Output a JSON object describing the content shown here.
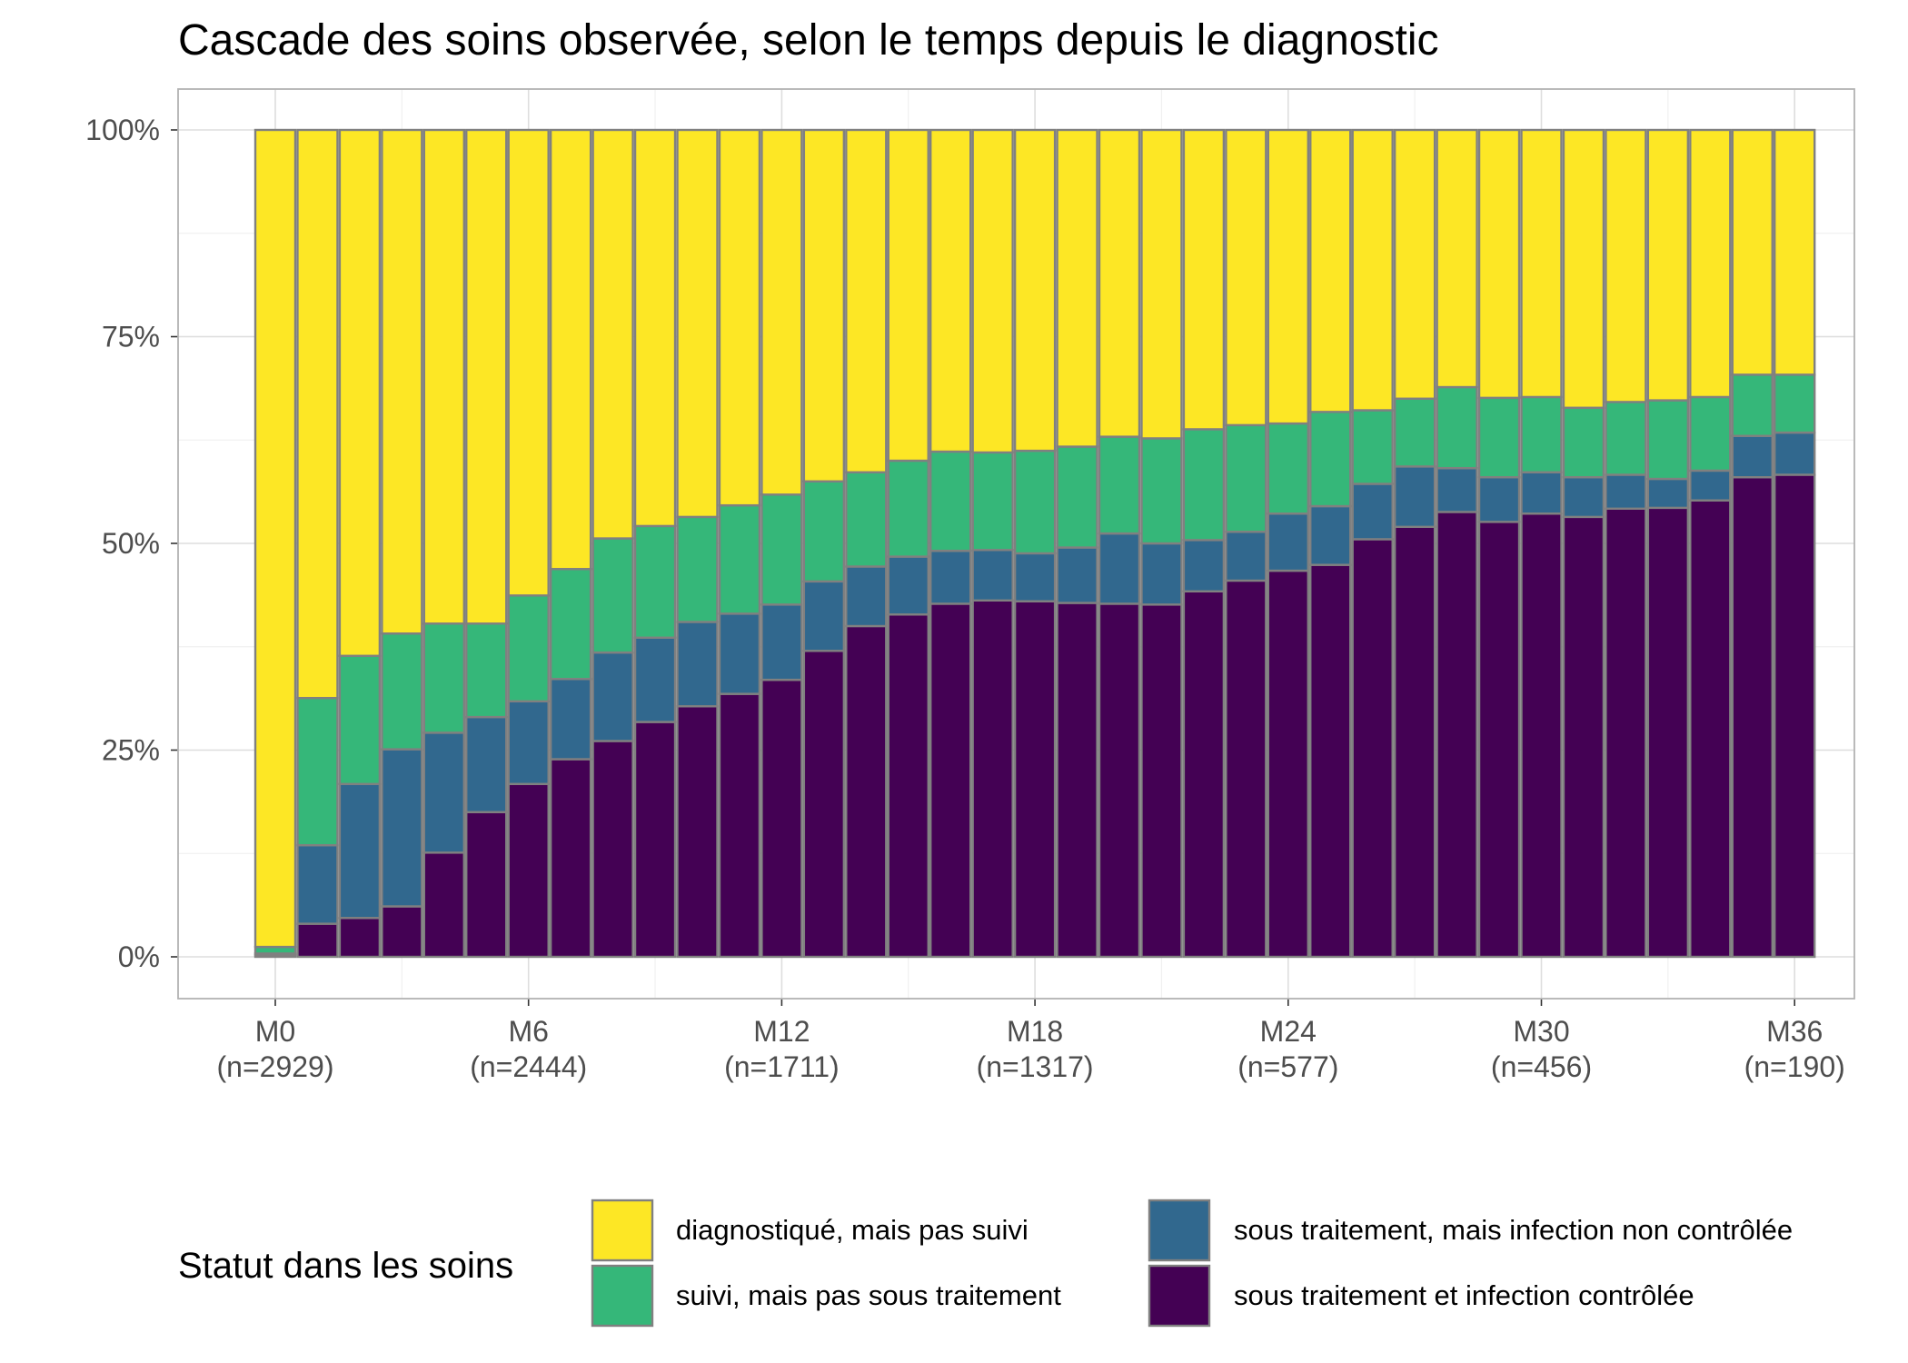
{
  "chart_data": {
    "type": "bar",
    "stacked": true,
    "title": "Cascade des soins observée, selon le temps depuis le diagnostic",
    "xlabel": "",
    "ylabel": "",
    "ylim": [
      0,
      1
    ],
    "y_ticks": [
      "0%",
      "25%",
      "50%",
      "75%",
      "100%"
    ],
    "x_tick_labels": [
      {
        "month": 0,
        "label": "M0",
        "n": "(n=2929)"
      },
      {
        "month": 6,
        "label": "M6",
        "n": "(n=2444)"
      },
      {
        "month": 12,
        "label": "M12",
        "n": "(n=1711)"
      },
      {
        "month": 18,
        "label": "M18",
        "n": "(n=1317)"
      },
      {
        "month": 24,
        "label": "M24",
        "n": "(n=577)"
      },
      {
        "month": 30,
        "label": "M30",
        "n": "(n=456)"
      },
      {
        "month": 36,
        "label": "M36",
        "n": "(n=190)"
      }
    ],
    "months": [
      0,
      1,
      2,
      3,
      4,
      5,
      6,
      7,
      8,
      9,
      10,
      11,
      12,
      13,
      14,
      15,
      16,
      17,
      18,
      19,
      20,
      21,
      22,
      23,
      24,
      25,
      26,
      27,
      28,
      29,
      30,
      31,
      32,
      33,
      34,
      35,
      36
    ],
    "series": [
      {
        "name": "sous traitement et infection contrôlée",
        "color": "#440154",
        "values": [
          0.002,
          0.04,
          0.047,
          0.061,
          0.126,
          0.175,
          0.209,
          0.239,
          0.261,
          0.284,
          0.303,
          0.318,
          0.335,
          0.37,
          0.4,
          0.414,
          0.427,
          0.431,
          0.43,
          0.428,
          0.427,
          0.426,
          0.442,
          0.455,
          0.467,
          0.474,
          0.505,
          0.52,
          0.538,
          0.526,
          0.536,
          0.532,
          0.542,
          0.543,
          0.552,
          0.58,
          0.583
        ]
      },
      {
        "name": "sous traitement, mais infection non contrôlée",
        "color": "#31688e",
        "values": [
          0.002,
          0.095,
          0.162,
          0.19,
          0.145,
          0.115,
          0.1,
          0.097,
          0.107,
          0.102,
          0.102,
          0.097,
          0.091,
          0.084,
          0.072,
          0.07,
          0.064,
          0.061,
          0.058,
          0.067,
          0.085,
          0.074,
          0.062,
          0.059,
          0.069,
          0.071,
          0.067,
          0.073,
          0.053,
          0.054,
          0.05,
          0.048,
          0.041,
          0.035,
          0.036,
          0.05,
          0.051
        ]
      },
      {
        "name": "suivi, mais pas sous traitement",
        "color": "#35b779",
        "values": [
          0.008,
          0.178,
          0.155,
          0.14,
          0.132,
          0.113,
          0.128,
          0.133,
          0.138,
          0.135,
          0.127,
          0.131,
          0.133,
          0.121,
          0.114,
          0.116,
          0.12,
          0.118,
          0.124,
          0.122,
          0.117,
          0.127,
          0.134,
          0.129,
          0.109,
          0.114,
          0.089,
          0.082,
          0.098,
          0.096,
          0.091,
          0.084,
          0.088,
          0.095,
          0.089,
          0.074,
          0.07
        ]
      },
      {
        "name": "diagnostiqué, mais pas suivi",
        "color": "#fde725",
        "values": [
          0.988,
          0.687,
          0.636,
          0.609,
          0.597,
          0.597,
          0.563,
          0.531,
          0.494,
          0.479,
          0.468,
          0.454,
          0.441,
          0.425,
          0.414,
          0.4,
          0.389,
          0.39,
          0.388,
          0.383,
          0.371,
          0.373,
          0.362,
          0.357,
          0.355,
          0.341,
          0.339,
          0.325,
          0.311,
          0.324,
          0.323,
          0.336,
          0.329,
          0.327,
          0.323,
          0.296,
          0.296
        ]
      }
    ],
    "legend": {
      "title": "Statut dans les soins",
      "position": "bottom",
      "entries": [
        {
          "label": "diagnostiqué, mais pas suivi",
          "color": "#fde725"
        },
        {
          "label": "suivi, mais pas sous traitement",
          "color": "#35b779"
        },
        {
          "label": "sous traitement, mais infection non contrôlée",
          "color": "#31688e"
        },
        {
          "label": "sous traitement et infection contrôlée",
          "color": "#440154"
        }
      ]
    },
    "grid": true
  }
}
